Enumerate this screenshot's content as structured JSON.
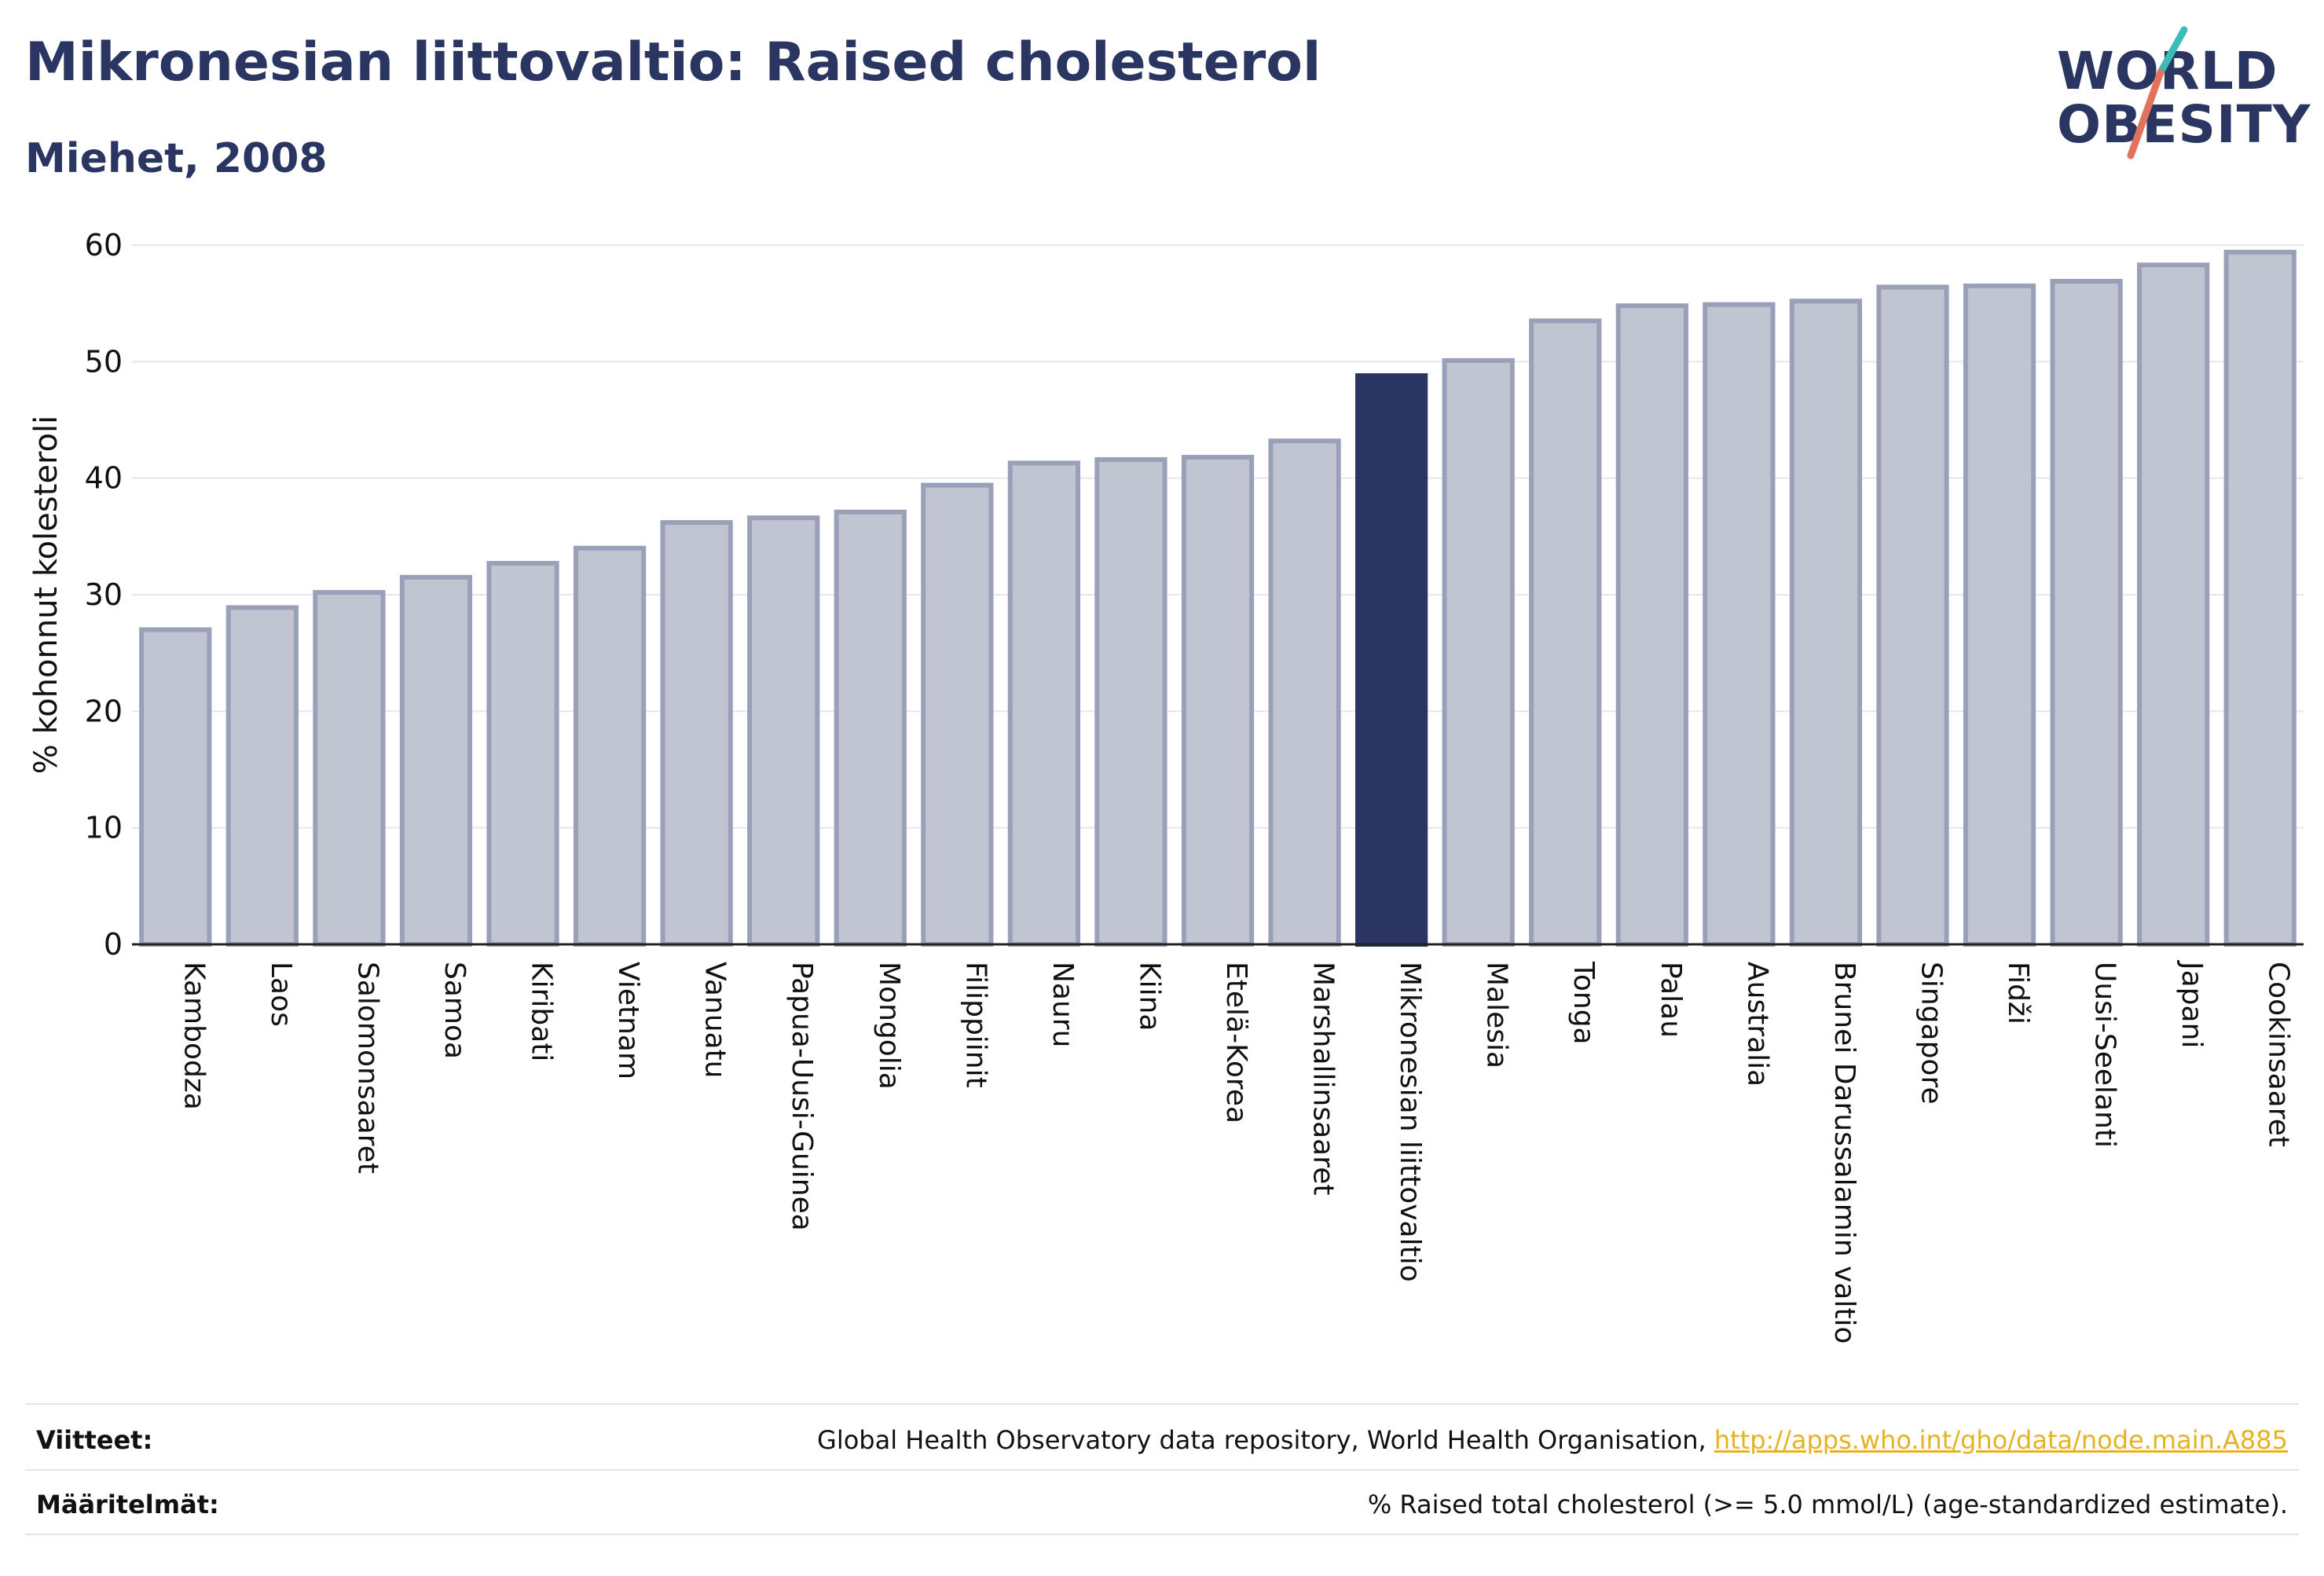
{
  "header": {
    "title": "Mikronesian liittovaltio: Raised cholesterol",
    "subtitle": "Miehet, 2008"
  },
  "logo": {
    "line1": "WORLD",
    "line2": "OBESITY",
    "accent_colors": [
      "#3cbcb9",
      "#e2725b"
    ]
  },
  "colors": {
    "bar": "#c1c4d1",
    "bar_border": "#9aa0b8",
    "highlight": "#2b3561",
    "axis_text": "#111111",
    "grid": "#e6e7ee"
  },
  "chart_data": {
    "type": "bar",
    "ylabel": "% kohonnut kolesteroli",
    "ylim": [
      0,
      60
    ],
    "yticks": [
      0,
      10,
      20,
      30,
      40,
      50,
      60
    ],
    "grid": true,
    "highlight": "Mikronesian liittovaltio",
    "categories": [
      "Kambodza",
      "Laos",
      "Salomonsaaret",
      "Samoa",
      "Kiribati",
      "Vietnam",
      "Vanuatu",
      "Papua-Uusi-Guinea",
      "Mongolia",
      "Filippiinit",
      "Nauru",
      "Kiina",
      "Etelä-Korea",
      "Marshallinsaaret",
      "Mikronesian liittovaltio",
      "Malesia",
      "Tonga",
      "Palau",
      "Australia",
      "Brunei Darussalamin valtio",
      "Singapore",
      "Fidži",
      "Uusi-Seelanti",
      "Japani",
      "Cookinsaaret"
    ],
    "values": [
      27.0,
      28.9,
      30.2,
      31.5,
      32.7,
      34.0,
      36.2,
      36.6,
      37.1,
      39.4,
      41.3,
      41.6,
      41.8,
      43.2,
      48.8,
      50.1,
      53.5,
      54.8,
      54.9,
      55.2,
      56.4,
      56.5,
      56.9,
      58.3,
      59.4
    ]
  },
  "footer": {
    "sources_label": "Viitteet:",
    "sources_text": "Global Health Observatory data repository, World Health Organisation, ",
    "sources_link": "http://apps.who.int/gho/data/node.main.A885",
    "definitions_label": "Määritelmät:",
    "definitions_text": "% Raised total cholesterol (>= 5.0 mmol/L) (age-standardized estimate)."
  }
}
